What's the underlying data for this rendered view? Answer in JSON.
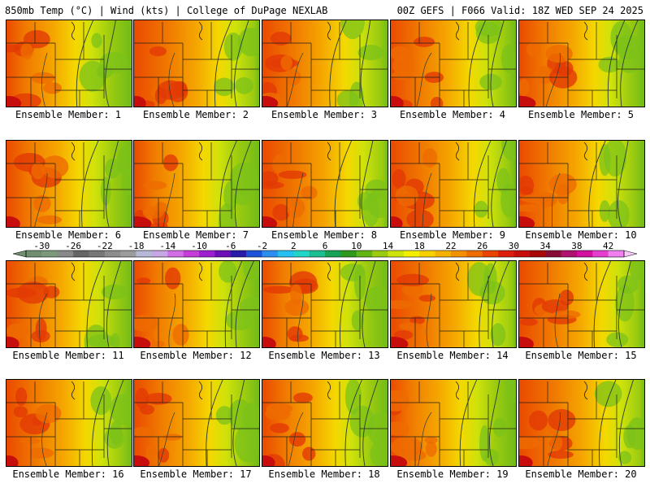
{
  "header": {
    "left_title": "850mb Temp (°C) | Wind (kts) | College of DuPage NEXLAB",
    "right_title": "00Z GEFS | F066 Valid: 18Z WED SEP 24 2025"
  },
  "member_label_prefix": "Ensemble Member:",
  "members": [
    {
      "id": 1,
      "label": "Ensemble Member: 1"
    },
    {
      "id": 2,
      "label": "Ensemble Member: 2"
    },
    {
      "id": 3,
      "label": "Ensemble Member: 3"
    },
    {
      "id": 4,
      "label": "Ensemble Member: 4"
    },
    {
      "id": 5,
      "label": "Ensemble Member: 5"
    },
    {
      "id": 6,
      "label": "Ensemble Member: 6"
    },
    {
      "id": 7,
      "label": "Ensemble Member: 7"
    },
    {
      "id": 8,
      "label": "Ensemble Member: 8"
    },
    {
      "id": 9,
      "label": "Ensemble Member: 9"
    },
    {
      "id": 10,
      "label": "Ensemble Member: 10"
    },
    {
      "id": 11,
      "label": "Ensemble Member: 11"
    },
    {
      "id": 12,
      "label": "Ensemble Member: 12"
    },
    {
      "id": 13,
      "label": "Ensemble Member: 13"
    },
    {
      "id": 14,
      "label": "Ensemble Member: 14"
    },
    {
      "id": 15,
      "label": "Ensemble Member: 15"
    },
    {
      "id": 16,
      "label": "Ensemble Member: 16"
    },
    {
      "id": 17,
      "label": "Ensemble Member: 17"
    },
    {
      "id": 18,
      "label": "Ensemble Member: 18"
    },
    {
      "id": 19,
      "label": "Ensemble Member: 19"
    },
    {
      "id": 20,
      "label": "Ensemble Member: 20"
    }
  ],
  "colorbar": {
    "units": "°C",
    "min": -32,
    "max": 44,
    "step": 2,
    "tick_labels": [
      "-30",
      "-26",
      "-22",
      "-18",
      "-14",
      "-10",
      "-6",
      "-2",
      "2",
      "6",
      "10",
      "14",
      "18",
      "22",
      "26",
      "30",
      "34",
      "38",
      "42"
    ],
    "colors": [
      "#6f8f6f",
      "#7a9a7a",
      "#888888",
      "#666666",
      "#777777",
      "#8c8c8c",
      "#9c9c9c",
      "#b7b7d8",
      "#c7a6e6",
      "#d36de6",
      "#c43ed8",
      "#9f1fd0",
      "#6b0fb8",
      "#2a1aa8",
      "#1d55d8",
      "#2c8ff0",
      "#25c0f0",
      "#21d6c8",
      "#1bbf8f",
      "#17a357",
      "#2e9a1c",
      "#62b515",
      "#9acb10",
      "#cfe20b",
      "#f4ee00",
      "#f7d000",
      "#f5b100",
      "#f39000",
      "#ee6c00",
      "#e84500",
      "#dd1e0a",
      "#c80d0d",
      "#a80808",
      "#880c38",
      "#b0106e",
      "#d20f9e",
      "#e63cd2",
      "#f080f0"
    ]
  }
}
